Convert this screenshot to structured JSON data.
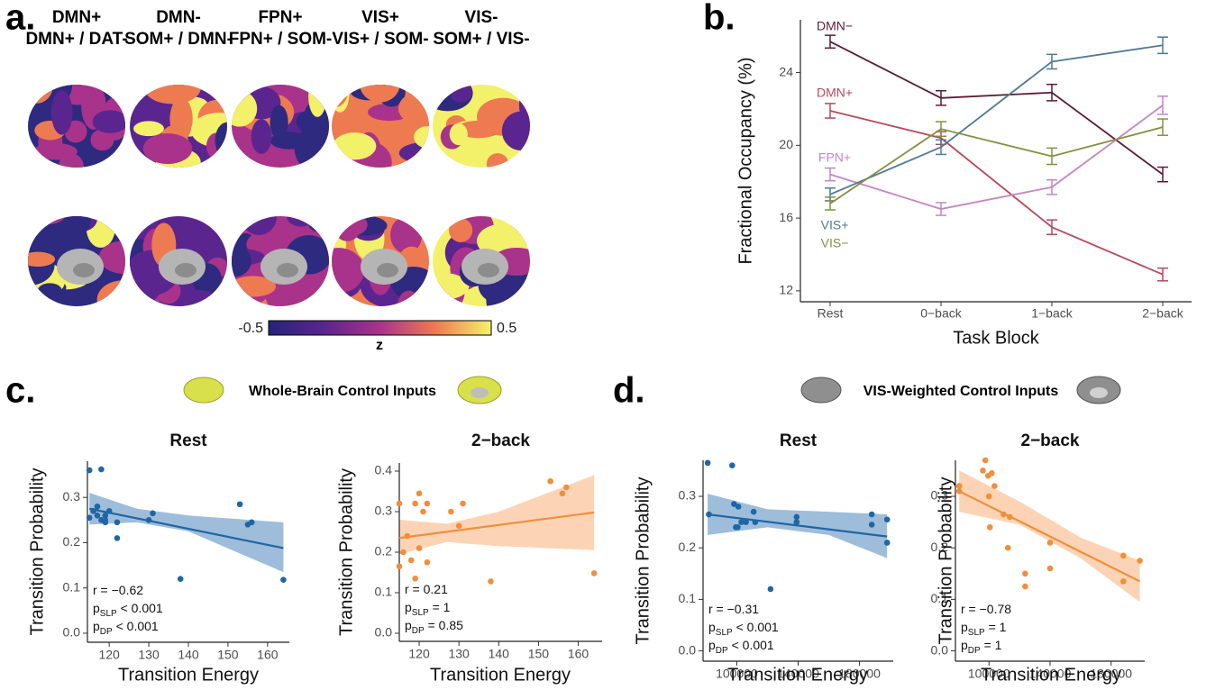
{
  "panel_labels": [
    "a.",
    "b.",
    "c.",
    "d."
  ],
  "brain_panel": {
    "columns": [
      {
        "state": "DMN+",
        "pair": "DMN+ / DAT-"
      },
      {
        "state": "DMN-",
        "pair": "SOM+ / DMN-"
      },
      {
        "state": "FPN+",
        "pair": "FPN+ / SOM-"
      },
      {
        "state": "VIS+",
        "pair": "VIS+ / SOM-"
      },
      {
        "state": "VIS-",
        "pair": "SOM+ / VIS-"
      }
    ],
    "colorbar": {
      "label": "z",
      "lim": [
        -0.5,
        0.5
      ],
      "ticks": [
        -0.5,
        0.5
      ]
    }
  },
  "panel_headers": [
    "Whole-Brain Control Inputs",
    "VIS-Weighted Control Inputs"
  ],
  "chart_data": [
    {
      "type": "line",
      "x_label": "Task Block",
      "y_label": "Fractional Occupancy (%)",
      "categories": [
        "Rest",
        "0−back",
        "1−back",
        "2−back"
      ],
      "ylim": [
        11.4,
        26.9
      ],
      "yticks": [
        12,
        16,
        20,
        24
      ],
      "series": [
        {
          "name": "DMN−",
          "color": "#5e1a35",
          "values": [
            25.7,
            22.6,
            22.9,
            18.4
          ],
          "errors": [
            0.35,
            0.4,
            0.45,
            0.4
          ]
        },
        {
          "name": "DMN+",
          "color": "#b74a5c",
          "values": [
            21.9,
            20.4,
            15.5,
            12.9
          ],
          "errors": [
            0.4,
            0.35,
            0.4,
            0.35
          ]
        },
        {
          "name": "FPN+",
          "color": "#c585c1",
          "values": [
            18.4,
            16.5,
            17.7,
            22.2
          ],
          "errors": [
            0.35,
            0.35,
            0.4,
            0.5
          ]
        },
        {
          "name": "VIS+",
          "color": "#4e7a94",
          "values": [
            17.3,
            19.9,
            24.6,
            25.5
          ],
          "errors": [
            0.35,
            0.4,
            0.4,
            0.45
          ]
        },
        {
          "name": "VIS−",
          "color": "#84903f",
          "values": [
            16.8,
            20.9,
            19.4,
            21.0
          ],
          "errors": [
            0.35,
            0.4,
            0.45,
            0.45
          ]
        }
      ]
    },
    {
      "type": "scatter",
      "title": "Rest",
      "x_label": "Transition Energy",
      "y_label": "Transition Probability",
      "color": "#1f66a3",
      "band_color": "#7ea7cf",
      "xlim": [
        114.5,
        165.5
      ],
      "xticks": [
        120,
        130,
        140,
        150,
        160
      ],
      "ylim": [
        -0.02,
        0.38
      ],
      "yticks": [
        {
          "value": 0,
          "label": "0.0"
        },
        0.1,
        0.2,
        0.3
      ],
      "x": [
        115,
        118,
        116,
        117,
        118,
        119,
        119,
        120,
        117,
        115,
        122,
        122,
        130,
        131,
        138,
        153,
        155,
        156,
        164,
        119
      ],
      "y": [
        0.36,
        0.362,
        0.27,
        0.28,
        0.25,
        0.26,
        0.245,
        0.27,
        0.26,
        0.255,
        0.245,
        0.21,
        0.25,
        0.265,
        0.12,
        0.285,
        0.24,
        0.245,
        0.118,
        0.25
      ],
      "fit": {
        "x": [
          115,
          164
        ],
        "y": [
          0.275,
          0.188
        ]
      },
      "ci": {
        "x": [
          115,
          127,
          140,
          164
        ],
        "lower": [
          0.24,
          0.245,
          0.225,
          0.135
        ],
        "upper": [
          0.31,
          0.275,
          0.26,
          0.245
        ]
      },
      "stats": [
        [
          "r = −0.62"
        ],
        [
          "p",
          "SLP",
          " < 0.001"
        ],
        [
          "p",
          "DP",
          " < 0.001"
        ]
      ]
    },
    {
      "type": "scatter",
      "title": "2−back",
      "x_label": "Transition Energy",
      "y_label": "Transition Probability",
      "color": "#f28e3a",
      "band_color": "#fbc69c",
      "xlim": [
        115,
        166
      ],
      "xticks": [
        120,
        130,
        140,
        150,
        160
      ],
      "ylim": [
        -0.02,
        0.42
      ],
      "yticks": [
        {
          "value": 0,
          "label": "0.0"
        },
        0.1,
        0.2,
        0.3,
        0.4
      ],
      "x": [
        115,
        115,
        116,
        117,
        118,
        119,
        119,
        120,
        120,
        121,
        122,
        122,
        128,
        130,
        131,
        138,
        153,
        156,
        157,
        164
      ],
      "y": [
        0.32,
        0.165,
        0.2,
        0.24,
        0.18,
        0.135,
        0.32,
        0.345,
        0.21,
        0.3,
        0.175,
        0.32,
        0.3,
        0.265,
        0.32,
        0.128,
        0.375,
        0.345,
        0.36,
        0.148
      ],
      "fit": {
        "x": [
          115,
          164
        ],
        "y": [
          0.235,
          0.298
        ]
      },
      "ci": {
        "x": [
          115,
          127,
          140,
          164
        ],
        "lower": [
          0.195,
          0.225,
          0.215,
          0.205
        ],
        "upper": [
          0.28,
          0.27,
          0.3,
          0.39
        ]
      },
      "stats": [
        [
          "r = 0.21"
        ],
        [
          "p",
          "SLP",
          " = 1"
        ],
        [
          "p",
          "DP",
          " = 0.85"
        ]
      ]
    },
    {
      "type": "scatter",
      "title": "Rest",
      "x_label": "Transition Energy",
      "y_label": "Transition Probability",
      "color": "#1f66a3",
      "band_color": "#7ea7cf",
      "xlim": [
        78000,
        202000
      ],
      "xticks": [
        100000,
        140000,
        180000
      ],
      "ylim": [
        -0.02,
        0.37
      ],
      "yticks": [
        {
          "value": 0,
          "label": "0.0"
        },
        0.1,
        0.2,
        0.3
      ],
      "x": [
        81000,
        81800,
        97000,
        99400,
        98200,
        101000,
        103000,
        100600,
        106000,
        111000,
        112000,
        122000,
        139000,
        139000,
        188000,
        188000,
        198000,
        198000
      ],
      "y": [
        0.365,
        0.265,
        0.36,
        0.24,
        0.285,
        0.28,
        0.25,
        0.24,
        0.25,
        0.27,
        0.25,
        0.12,
        0.26,
        0.25,
        0.265,
        0.245,
        0.255,
        0.21
      ],
      "fit": {
        "x": [
          81000,
          198000
        ],
        "y": [
          0.265,
          0.222
        ]
      },
      "ci": {
        "x": [
          81000,
          120000,
          160000,
          198000
        ],
        "lower": [
          0.225,
          0.24,
          0.225,
          0.18
        ],
        "upper": [
          0.305,
          0.275,
          0.27,
          0.265
        ]
      },
      "stats": [
        [
          "r = −0.31"
        ],
        [
          "p",
          "SLP",
          " < 0.001"
        ],
        [
          "p",
          "DP",
          " < 0.001"
        ]
      ]
    },
    {
      "type": "scatter",
      "title": "2−back",
      "x_label": "Transition Energy",
      "y_label": "Transition Probability",
      "color": "#f28e3a",
      "band_color": "#fbc69c",
      "xlim": [
        78000,
        202000
      ],
      "xticks": [
        100000,
        140000,
        180000
      ],
      "ylim": [
        -0.02,
        0.37
      ],
      "yticks": [
        {
          "value": 0,
          "label": "0.0"
        },
        0.1,
        0.2,
        0.3
      ],
      "x": [
        80500,
        80500,
        96000,
        97600,
        99400,
        100000,
        101800,
        100600,
        103600,
        109500,
        112400,
        113600,
        123700,
        123700,
        140000,
        140000,
        188000,
        188000,
        198800
      ],
      "y": [
        0.32,
        0.31,
        0.35,
        0.37,
        0.34,
        0.3,
        0.345,
        0.24,
        0.32,
        0.265,
        0.2,
        0.26,
        0.15,
        0.125,
        0.21,
        0.16,
        0.185,
        0.135,
        0.175
      ],
      "fit": {
        "x": [
          80500,
          198800
        ],
        "y": [
          0.31,
          0.135
        ]
      },
      "ci": {
        "x": [
          80500,
          120000,
          160000,
          198800
        ],
        "lower": [
          0.27,
          0.245,
          0.18,
          0.095
        ],
        "upper": [
          0.35,
          0.29,
          0.22,
          0.175
        ]
      },
      "stats": [
        [
          "r = −0.78"
        ],
        [
          "p",
          "SLP",
          " = 1"
        ],
        [
          "p",
          "DP",
          " = 1"
        ]
      ]
    }
  ]
}
